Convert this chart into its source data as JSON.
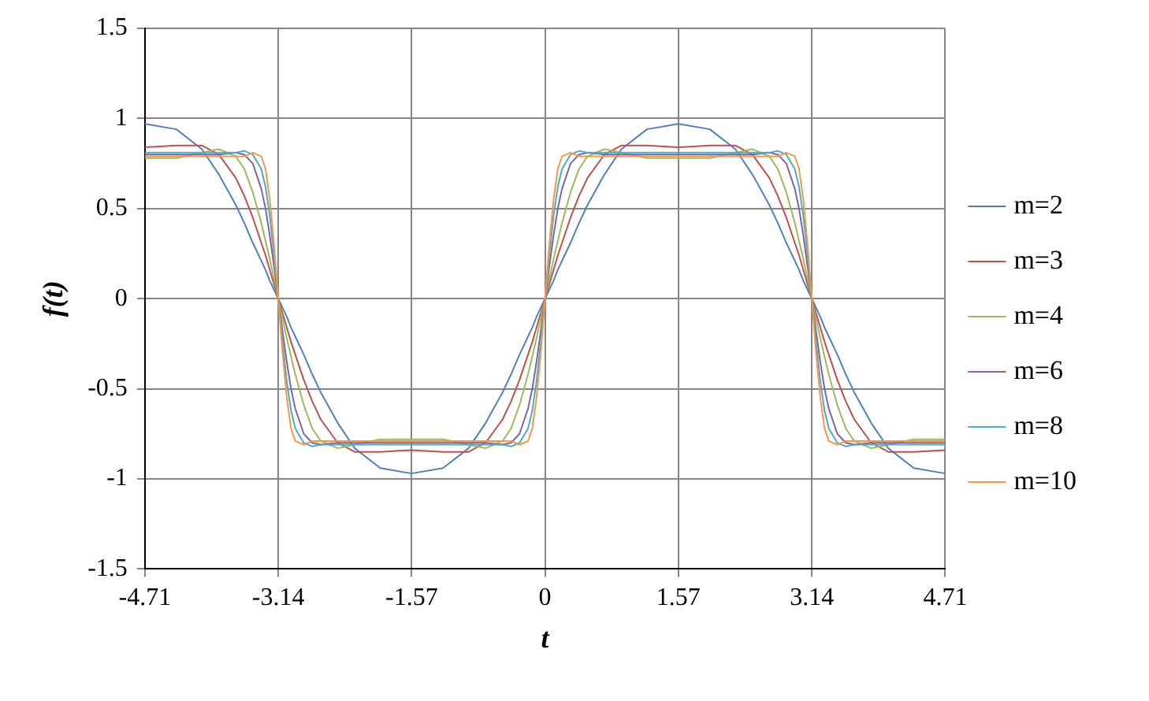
{
  "chart_data": {
    "type": "line",
    "xlabel": "t",
    "ylabel": "f(t)",
    "xlim": [
      -4.71,
      4.71
    ],
    "xticks": [
      -4.71,
      -3.14,
      -1.57,
      0,
      1.57,
      3.14,
      4.71
    ],
    "ylim": [
      -1.5,
      1.5
    ],
    "yticks": [
      -1.5,
      -1,
      -0.5,
      0,
      0.5,
      1,
      1.5
    ],
    "grid": true,
    "legend": "right",
    "marker": "none",
    "line_style": "solid",
    "x": [
      -4.71,
      -4.34,
      -4.04,
      -3.84,
      -3.64,
      -3.54,
      -3.44,
      -3.34,
      -3.29,
      -3.24,
      -3.19,
      -3.14,
      -3.09,
      -3.04,
      -2.99,
      -2.94,
      -2.84,
      -2.74,
      -2.64,
      -2.44,
      -2.24,
      -1.94,
      -1.57,
      -1.2,
      -0.9,
      -0.7,
      -0.5,
      -0.4,
      -0.3,
      -0.2,
      -0.15,
      -0.1,
      -0.05,
      0,
      0.05,
      0.1,
      0.15,
      0.2,
      0.3,
      0.4,
      0.5,
      0.7,
      0.9,
      1.2,
      1.57,
      1.94,
      2.24,
      2.44,
      2.64,
      2.74,
      2.84,
      2.94,
      2.99,
      3.04,
      3.09,
      3.14,
      3.19,
      3.24,
      3.29,
      3.34,
      3.44,
      3.54,
      3.64,
      3.84,
      4.04,
      4.34,
      4.71
    ],
    "series": [
      {
        "name": "m=2",
        "color": "#4f81bd",
        "values": [
          0.97,
          0.94,
          0.83,
          0.69,
          0.52,
          0.42,
          0.31,
          0.21,
          0.16,
          0.1,
          0.05,
          0,
          -0.05,
          -0.1,
          -0.16,
          -0.21,
          -0.31,
          -0.42,
          -0.52,
          -0.69,
          -0.83,
          -0.94,
          -0.97,
          -0.94,
          -0.83,
          -0.69,
          -0.52,
          -0.42,
          -0.31,
          -0.21,
          -0.16,
          -0.1,
          -0.05,
          0,
          0.05,
          0.1,
          0.16,
          0.21,
          0.31,
          0.42,
          0.52,
          0.69,
          0.83,
          0.94,
          0.97,
          0.94,
          0.83,
          0.69,
          0.52,
          0.42,
          0.31,
          0.21,
          0.16,
          0.1,
          0.05,
          0,
          -0.05,
          -0.1,
          -0.16,
          -0.21,
          -0.31,
          -0.42,
          -0.52,
          -0.69,
          -0.83,
          -0.94,
          -0.97
        ]
      },
      {
        "name": "m=3",
        "color": "#c0504d",
        "values": [
          0.84,
          0.85,
          0.85,
          0.8,
          0.67,
          0.57,
          0.45,
          0.31,
          0.24,
          0.16,
          0.08,
          0,
          -0.08,
          -0.16,
          -0.24,
          -0.31,
          -0.45,
          -0.57,
          -0.67,
          -0.8,
          -0.85,
          -0.85,
          -0.84,
          -0.85,
          -0.85,
          -0.8,
          -0.67,
          -0.57,
          -0.45,
          -0.31,
          -0.24,
          -0.16,
          -0.08,
          0,
          0.08,
          0.16,
          0.24,
          0.31,
          0.45,
          0.57,
          0.67,
          0.8,
          0.85,
          0.85,
          0.84,
          0.85,
          0.85,
          0.8,
          0.67,
          0.57,
          0.45,
          0.31,
          0.24,
          0.16,
          0.08,
          0,
          -0.08,
          -0.16,
          -0.24,
          -0.31,
          -0.45,
          -0.57,
          -0.67,
          -0.8,
          -0.85,
          -0.85,
          -0.84
        ]
      },
      {
        "name": "m=4",
        "color": "#9bbb59",
        "values": [
          0.78,
          0.78,
          0.81,
          0.83,
          0.79,
          0.72,
          0.59,
          0.42,
          0.32,
          0.22,
          0.11,
          0,
          -0.11,
          -0.22,
          -0.32,
          -0.42,
          -0.59,
          -0.72,
          -0.79,
          -0.83,
          -0.81,
          -0.78,
          -0.78,
          -0.78,
          -0.81,
          -0.83,
          -0.79,
          -0.72,
          -0.59,
          -0.42,
          -0.32,
          -0.22,
          -0.11,
          0,
          0.11,
          0.22,
          0.32,
          0.42,
          0.59,
          0.72,
          0.79,
          0.83,
          0.81,
          0.78,
          0.78,
          0.78,
          0.81,
          0.83,
          0.79,
          0.72,
          0.59,
          0.42,
          0.32,
          0.22,
          0.11,
          0,
          -0.11,
          -0.22,
          -0.32,
          -0.42,
          -0.59,
          -0.72,
          -0.79,
          -0.83,
          -0.81,
          -0.78,
          -0.78
        ]
      },
      {
        "name": "m=6",
        "color": "#8064a2",
        "values": [
          0.8,
          0.8,
          0.8,
          0.8,
          0.81,
          0.8,
          0.75,
          0.61,
          0.5,
          0.35,
          0.18,
          0,
          -0.18,
          -0.35,
          -0.5,
          -0.61,
          -0.75,
          -0.8,
          -0.81,
          -0.8,
          -0.8,
          -0.8,
          -0.8,
          -0.8,
          -0.8,
          -0.8,
          -0.81,
          -0.8,
          -0.75,
          -0.61,
          -0.5,
          -0.35,
          -0.18,
          0,
          0.18,
          0.35,
          0.5,
          0.61,
          0.75,
          0.8,
          0.81,
          0.8,
          0.8,
          0.8,
          0.8,
          0.8,
          0.8,
          0.8,
          0.81,
          0.8,
          0.75,
          0.61,
          0.5,
          0.35,
          0.18,
          0,
          -0.18,
          -0.35,
          -0.5,
          -0.61,
          -0.75,
          -0.8,
          -0.81,
          -0.8,
          -0.8,
          -0.8,
          -0.8
        ]
      },
      {
        "name": "m=8",
        "color": "#4bacc6",
        "values": [
          0.81,
          0.81,
          0.81,
          0.81,
          0.81,
          0.82,
          0.8,
          0.72,
          0.62,
          0.46,
          0.24,
          0,
          -0.24,
          -0.46,
          -0.62,
          -0.72,
          -0.8,
          -0.82,
          -0.81,
          -0.81,
          -0.81,
          -0.81,
          -0.81,
          -0.81,
          -0.81,
          -0.81,
          -0.81,
          -0.82,
          -0.8,
          -0.72,
          -0.62,
          -0.46,
          -0.24,
          0,
          0.24,
          0.46,
          0.62,
          0.72,
          0.8,
          0.82,
          0.81,
          0.81,
          0.81,
          0.81,
          0.81,
          0.81,
          0.81,
          0.81,
          0.81,
          0.82,
          0.8,
          0.72,
          0.62,
          0.46,
          0.24,
          0,
          -0.24,
          -0.46,
          -0.62,
          -0.72,
          -0.8,
          -0.82,
          -0.81,
          -0.81,
          -0.81,
          -0.81,
          -0.81
        ]
      },
      {
        "name": "m=10",
        "color": "#f79646",
        "values": [
          0.79,
          0.79,
          0.79,
          0.79,
          0.79,
          0.79,
          0.81,
          0.79,
          0.72,
          0.55,
          0.3,
          0,
          -0.3,
          -0.55,
          -0.72,
          -0.79,
          -0.81,
          -0.79,
          -0.79,
          -0.79,
          -0.79,
          -0.79,
          -0.79,
          -0.79,
          -0.79,
          -0.79,
          -0.79,
          -0.79,
          -0.81,
          -0.79,
          -0.72,
          -0.55,
          -0.3,
          0,
          0.3,
          0.55,
          0.72,
          0.79,
          0.81,
          0.79,
          0.79,
          0.79,
          0.79,
          0.79,
          0.79,
          0.79,
          0.79,
          0.79,
          0.79,
          0.79,
          0.81,
          0.79,
          0.72,
          0.55,
          0.3,
          0,
          -0.3,
          -0.55,
          -0.72,
          -0.79,
          -0.81,
          -0.79,
          -0.79,
          -0.79,
          -0.79,
          -0.79,
          -0.79
        ]
      }
    ]
  }
}
